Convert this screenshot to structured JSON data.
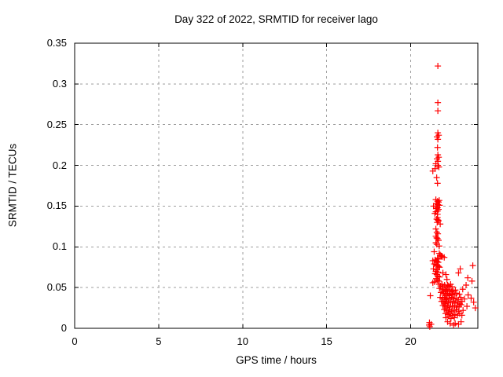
{
  "chart_data": {
    "type": "scatter",
    "title": "Day 322 of 2022, SRMTID for receiver lago",
    "xlabel": "GPS time / hours",
    "ylabel": "SRMTID / TECUs",
    "xlim": [
      0,
      24
    ],
    "ylim": [
      0,
      0.35
    ],
    "xticks": {
      "values": [
        0,
        5,
        10,
        15,
        20
      ],
      "labels": [
        "0",
        "5",
        "10",
        "15",
        "20"
      ]
    },
    "yticks": {
      "values": [
        0,
        0.05,
        0.1,
        0.15,
        0.2,
        0.25,
        0.3,
        0.35
      ],
      "labels": [
        "0",
        "0.05",
        "0.1",
        "0.15",
        "0.2",
        "0.25",
        "0.3",
        "0.35"
      ]
    },
    "grid": true,
    "legend": "none",
    "marker": {
      "shape": "plus",
      "color": "#ff0000",
      "size": 8
    },
    "grid_color": "#9e9e9e",
    "border_color": "#000000",
    "text_color": "#000000",
    "background_color": "#ffffff",
    "series": [
      {
        "name": "SRMTID",
        "points": [
          [
            21.62,
            0.322
          ],
          [
            21.62,
            0.277
          ],
          [
            21.62,
            0.267
          ],
          [
            21.62,
            0.24
          ],
          [
            21.67,
            0.237
          ],
          [
            21.57,
            0.235
          ],
          [
            21.62,
            0.232
          ],
          [
            21.6,
            0.222
          ],
          [
            21.62,
            0.213
          ],
          [
            21.67,
            0.21
          ],
          [
            21.57,
            0.208
          ],
          [
            21.62,
            0.205
          ],
          [
            21.5,
            0.202
          ],
          [
            21.62,
            0.2
          ],
          [
            21.68,
            0.198
          ],
          [
            21.45,
            0.196
          ],
          [
            21.32,
            0.193
          ],
          [
            21.55,
            0.185
          ],
          [
            21.6,
            0.178
          ],
          [
            21.5,
            0.158
          ],
          [
            21.6,
            0.156
          ],
          [
            21.66,
            0.155
          ],
          [
            21.55,
            0.153
          ],
          [
            21.62,
            0.152
          ],
          [
            21.72,
            0.151
          ],
          [
            21.48,
            0.15
          ],
          [
            21.6,
            0.148
          ],
          [
            21.55,
            0.147
          ],
          [
            21.66,
            0.146
          ],
          [
            21.6,
            0.144
          ],
          [
            21.5,
            0.143
          ],
          [
            21.44,
            0.141
          ],
          [
            21.6,
            0.14
          ],
          [
            21.36,
            0.15
          ],
          [
            21.7,
            0.157
          ],
          [
            21.6,
            0.136
          ],
          [
            21.55,
            0.134
          ],
          [
            21.62,
            0.133
          ],
          [
            21.66,
            0.132
          ],
          [
            21.58,
            0.13
          ],
          [
            21.76,
            0.128
          ],
          [
            21.5,
            0.122
          ],
          [
            21.56,
            0.118
          ],
          [
            21.62,
            0.116
          ],
          [
            21.5,
            0.113
          ],
          [
            21.55,
            0.111
          ],
          [
            21.6,
            0.11
          ],
          [
            21.66,
            0.108
          ],
          [
            21.5,
            0.105
          ],
          [
            21.56,
            0.103
          ],
          [
            21.7,
            0.101
          ],
          [
            21.4,
            0.094
          ],
          [
            21.7,
            0.092
          ],
          [
            21.76,
            0.09
          ],
          [
            21.82,
            0.089
          ],
          [
            21.88,
            0.088
          ],
          [
            21.6,
            0.086
          ],
          [
            21.66,
            0.085
          ],
          [
            22.0,
            0.087
          ],
          [
            21.32,
            0.083
          ],
          [
            21.46,
            0.084
          ],
          [
            21.52,
            0.083
          ],
          [
            21.58,
            0.082
          ],
          [
            21.64,
            0.081
          ],
          [
            21.4,
            0.079
          ],
          [
            21.5,
            0.078
          ],
          [
            21.6,
            0.077
          ],
          [
            21.66,
            0.076
          ],
          [
            21.72,
            0.075
          ],
          [
            21.36,
            0.073
          ],
          [
            21.56,
            0.072
          ],
          [
            21.5,
            0.07
          ],
          [
            21.62,
            0.069
          ],
          [
            21.46,
            0.067
          ],
          [
            21.56,
            0.066
          ],
          [
            21.62,
            0.064
          ],
          [
            21.72,
            0.063
          ],
          [
            21.52,
            0.061
          ],
          [
            21.58,
            0.059
          ],
          [
            21.66,
            0.058
          ],
          [
            21.42,
            0.057
          ],
          [
            21.32,
            0.056
          ],
          [
            22.1,
            0.066
          ],
          [
            22.16,
            0.06
          ],
          [
            21.92,
            0.068
          ],
          [
            22.95,
            0.073
          ],
          [
            22.85,
            0.068
          ],
          [
            21.7,
            0.054
          ],
          [
            21.86,
            0.054
          ],
          [
            22.02,
            0.053
          ],
          [
            22.2,
            0.053
          ],
          [
            22.38,
            0.054
          ],
          [
            21.78,
            0.052
          ],
          [
            21.94,
            0.051
          ],
          [
            22.1,
            0.051
          ],
          [
            22.26,
            0.052
          ],
          [
            22.46,
            0.051
          ],
          [
            23.3,
            0.053
          ],
          [
            21.72,
            0.049
          ],
          [
            21.88,
            0.048
          ],
          [
            22.04,
            0.047
          ],
          [
            22.18,
            0.048
          ],
          [
            22.34,
            0.047
          ],
          [
            22.52,
            0.046
          ],
          [
            22.66,
            0.047
          ],
          [
            21.96,
            0.045
          ],
          [
            22.12,
            0.046
          ],
          [
            22.42,
            0.045
          ],
          [
            23.1,
            0.048
          ],
          [
            21.8,
            0.044
          ],
          [
            21.94,
            0.043
          ],
          [
            22.06,
            0.042
          ],
          [
            22.2,
            0.043
          ],
          [
            22.32,
            0.041
          ],
          [
            22.48,
            0.042
          ],
          [
            22.6,
            0.041
          ],
          [
            22.74,
            0.043
          ],
          [
            22.9,
            0.042
          ],
          [
            22.14,
            0.04
          ],
          [
            22.28,
            0.04
          ],
          [
            23.42,
            0.041
          ],
          [
            21.76,
            0.038
          ],
          [
            21.9,
            0.037
          ],
          [
            22.02,
            0.038
          ],
          [
            22.16,
            0.036
          ],
          [
            22.3,
            0.037
          ],
          [
            22.44,
            0.038
          ],
          [
            22.56,
            0.036
          ],
          [
            22.7,
            0.037
          ],
          [
            22.84,
            0.035
          ],
          [
            22.98,
            0.038
          ],
          [
            22.08,
            0.035
          ],
          [
            23.2,
            0.036
          ],
          [
            23.6,
            0.037
          ],
          [
            21.84,
            0.033
          ],
          [
            21.98,
            0.032
          ],
          [
            22.12,
            0.033
          ],
          [
            22.24,
            0.031
          ],
          [
            22.38,
            0.032
          ],
          [
            22.52,
            0.033
          ],
          [
            22.64,
            0.031
          ],
          [
            22.78,
            0.032
          ],
          [
            22.92,
            0.03
          ],
          [
            22.04,
            0.03
          ],
          [
            23.06,
            0.033
          ],
          [
            23.75,
            0.032
          ],
          [
            21.92,
            0.028
          ],
          [
            22.06,
            0.027
          ],
          [
            22.2,
            0.028
          ],
          [
            22.34,
            0.026
          ],
          [
            22.48,
            0.027
          ],
          [
            22.62,
            0.028
          ],
          [
            22.76,
            0.026
          ],
          [
            22.88,
            0.027
          ],
          [
            22.14,
            0.025
          ],
          [
            23.0,
            0.029
          ],
          [
            23.35,
            0.027
          ],
          [
            22.0,
            0.023
          ],
          [
            22.16,
            0.022
          ],
          [
            22.3,
            0.023
          ],
          [
            22.44,
            0.021
          ],
          [
            22.58,
            0.022
          ],
          [
            22.72,
            0.023
          ],
          [
            22.86,
            0.021
          ],
          [
            22.24,
            0.02
          ],
          [
            23.12,
            0.022
          ],
          [
            23.85,
            0.025
          ],
          [
            22.08,
            0.018
          ],
          [
            22.22,
            0.017
          ],
          [
            22.36,
            0.018
          ],
          [
            22.5,
            0.016
          ],
          [
            22.64,
            0.017
          ],
          [
            22.78,
            0.016
          ],
          [
            22.92,
            0.018
          ],
          [
            23.05,
            0.016
          ],
          [
            22.3,
            0.015
          ],
          [
            22.1,
            0.013
          ],
          [
            22.4,
            0.012
          ],
          [
            22.6,
            0.013
          ],
          [
            21.17,
            0.04
          ],
          [
            21.1,
            0.004
          ],
          [
            21.12,
            0.007
          ],
          [
            21.14,
            0.002
          ],
          [
            21.22,
            0.005
          ],
          [
            22.55,
            0.004
          ],
          [
            22.65,
            0.006
          ],
          [
            22.85,
            0.005
          ],
          [
            23.0,
            0.008
          ],
          [
            22.2,
            0.008
          ],
          [
            22.35,
            0.006
          ],
          [
            23.4,
            0.062
          ],
          [
            23.65,
            0.058
          ],
          [
            23.7,
            0.077
          ]
        ]
      }
    ]
  }
}
